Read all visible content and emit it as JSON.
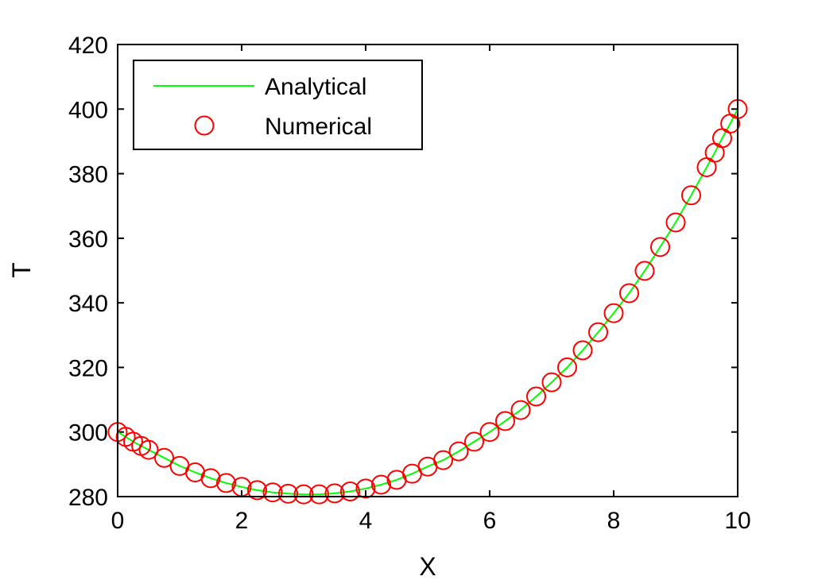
{
  "chart_data": {
    "type": "line",
    "title": "",
    "xlabel": "X",
    "ylabel": "T",
    "xlim": [
      0,
      10
    ],
    "ylim": [
      280,
      420
    ],
    "xticks": [
      0,
      2,
      4,
      6,
      8,
      10
    ],
    "yticks": [
      280,
      300,
      320,
      340,
      360,
      380,
      400,
      420
    ],
    "grid": false,
    "legend_position": "top-left",
    "series": [
      {
        "name": "Analytical",
        "style": "line",
        "color": "#00ff00",
        "x": [
          0,
          0.13,
          0.25,
          0.38,
          0.5,
          0.75,
          1,
          1.25,
          1.5,
          1.75,
          2,
          2.25,
          2.5,
          2.75,
          3,
          3.25,
          3.5,
          3.75,
          4,
          4.25,
          4.5,
          4.75,
          5,
          5.25,
          5.5,
          5.75,
          6,
          6.25,
          6.5,
          6.75,
          7,
          7.25,
          7.5,
          7.75,
          8,
          8.25,
          8.5,
          8.75,
          9,
          9.25,
          9.5,
          9.63,
          9.75,
          9.88,
          10
        ],
        "y": [
          300,
          298.5,
          297,
          295.7,
          294.5,
          292,
          289.5,
          287.5,
          285.7,
          284.2,
          283,
          282,
          281.3,
          280.9,
          280.7,
          280.7,
          281,
          281.6,
          282.5,
          283.7,
          285.2,
          287.1,
          289.3,
          291.3,
          294,
          297,
          300,
          303.4,
          306.8,
          311,
          315.4,
          320,
          325.3,
          330.9,
          336.8,
          343,
          349.9,
          357.3,
          364.9,
          373.3,
          382,
          386.5,
          391,
          395.5,
          400
        ]
      },
      {
        "name": "Numerical",
        "style": "circle-markers",
        "color": "#ff0000",
        "x": [
          0,
          0.13,
          0.25,
          0.38,
          0.5,
          0.75,
          1,
          1.25,
          1.5,
          1.75,
          2,
          2.25,
          2.5,
          2.75,
          3,
          3.25,
          3.5,
          3.75,
          4,
          4.25,
          4.5,
          4.75,
          5,
          5.25,
          5.5,
          5.75,
          6,
          6.25,
          6.5,
          6.75,
          7,
          7.25,
          7.5,
          7.75,
          8,
          8.25,
          8.5,
          8.75,
          9,
          9.25,
          9.5,
          9.63,
          9.75,
          9.88,
          10
        ],
        "y": [
          300,
          298.5,
          297,
          295.7,
          294.5,
          292,
          289.5,
          287.5,
          285.7,
          284.2,
          283,
          282,
          281.3,
          280.9,
          280.7,
          280.7,
          281,
          281.6,
          282.5,
          283.7,
          285.2,
          287.1,
          289.3,
          291.3,
          294,
          297,
          300,
          303.4,
          306.8,
          311,
          315.4,
          320,
          325.3,
          330.9,
          336.8,
          343,
          349.9,
          357.3,
          364.9,
          373.3,
          382,
          386.5,
          391,
          395.5,
          400
        ]
      }
    ]
  }
}
